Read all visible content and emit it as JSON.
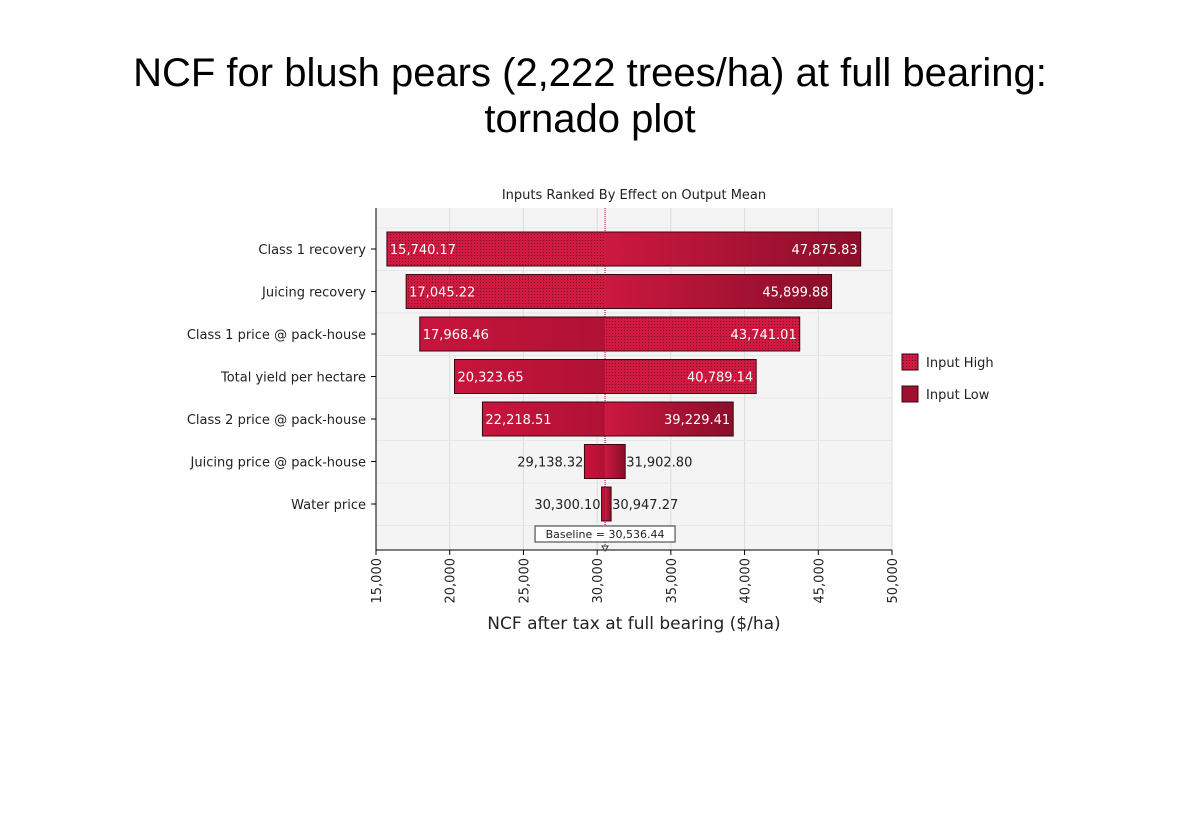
{
  "slide": {
    "title_line1": "NCF for blush pears (2,222 trees/ha) at full bearing:",
    "title_line2": "tornado plot"
  },
  "colors": {
    "bar_fill": "#c8143c",
    "bar_dark": "#8e0f2b",
    "plot_bg": "#f4f4f4",
    "grid": "#dcdcdc"
  },
  "chart_data": {
    "type": "bar",
    "orientation": "horizontal-tornado",
    "title": "Inputs Ranked By Effect on Output Mean",
    "xlabel": "NCF after tax at full bearing ($/ha)",
    "ylabel": "",
    "xlim": [
      15000,
      50000
    ],
    "x_ticks": [
      15000,
      20000,
      25000,
      30000,
      35000,
      40000,
      45000,
      50000
    ],
    "x_tick_labels": [
      "15,000",
      "20,000",
      "25,000",
      "30,000",
      "35,000",
      "40,000",
      "45,000",
      "50,000"
    ],
    "baseline": 30536.44,
    "baseline_label": "Baseline = 30,536.44",
    "grid": true,
    "legend_position": "right",
    "legend": [
      {
        "name": "Input High",
        "pattern": "dotted"
      },
      {
        "name": "Input Low",
        "pattern": "solid"
      }
    ],
    "categories": [
      "Class 1 recovery",
      "Juicing recovery",
      "Class 1 price @ pack-house",
      "Total yield per hectare",
      "Class 2 price @ pack-house",
      "Juicing price @ pack-house",
      "Water price"
    ],
    "low_values": [
      15740.17,
      17045.22,
      17968.46,
      20323.65,
      22218.51,
      29138.32,
      30300.1
    ],
    "high_values": [
      47875.83,
      45899.88,
      43741.01,
      40789.14,
      39229.41,
      31902.8,
      30947.27
    ],
    "low_labels": [
      "15,740.17",
      "17,045.22",
      "17,968.46",
      "20,323.65",
      "22,218.51",
      "29,138.32",
      "30,300.10"
    ],
    "high_labels": [
      "47,875.83",
      "45,899.88",
      "43,741.01",
      "40,789.14",
      "39,229.41",
      "31,902.80",
      "30,947.27"
    ],
    "left_pattern": [
      "dotted",
      "dotted",
      "solid",
      "solid",
      "solid",
      "solid",
      "solid"
    ],
    "right_pattern": [
      "solid",
      "solid",
      "dotted",
      "dotted",
      "solid",
      "solid",
      "solid"
    ]
  }
}
